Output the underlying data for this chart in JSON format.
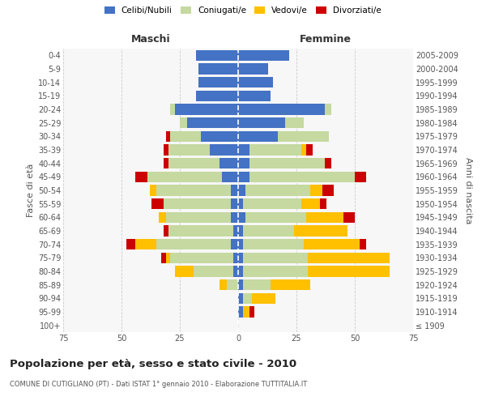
{
  "age_groups": [
    "100+",
    "95-99",
    "90-94",
    "85-89",
    "80-84",
    "75-79",
    "70-74",
    "65-69",
    "60-64",
    "55-59",
    "50-54",
    "45-49",
    "40-44",
    "35-39",
    "30-34",
    "25-29",
    "20-24",
    "15-19",
    "10-14",
    "5-9",
    "0-4"
  ],
  "birth_years": [
    "≤ 1909",
    "1910-1914",
    "1915-1919",
    "1920-1924",
    "1925-1929",
    "1930-1934",
    "1935-1939",
    "1940-1944",
    "1945-1949",
    "1950-1954",
    "1955-1959",
    "1960-1964",
    "1965-1969",
    "1970-1974",
    "1975-1979",
    "1980-1984",
    "1985-1989",
    "1990-1994",
    "1995-1999",
    "2000-2004",
    "2005-2009"
  ],
  "males": {
    "celibi": [
      0,
      0,
      0,
      0,
      2,
      2,
      3,
      2,
      3,
      3,
      3,
      7,
      8,
      12,
      16,
      22,
      27,
      18,
      17,
      17,
      18
    ],
    "coniugati": [
      0,
      0,
      0,
      5,
      17,
      27,
      32,
      28,
      28,
      29,
      32,
      32,
      22,
      18,
      13,
      3,
      2,
      0,
      0,
      0,
      0
    ],
    "vedovi": [
      0,
      0,
      0,
      3,
      8,
      2,
      9,
      0,
      3,
      0,
      3,
      0,
      0,
      0,
      0,
      0,
      0,
      0,
      0,
      0,
      0
    ],
    "divorziati": [
      0,
      0,
      0,
      0,
      0,
      2,
      4,
      2,
      0,
      5,
      0,
      5,
      2,
      2,
      2,
      0,
      0,
      0,
      0,
      0,
      0
    ]
  },
  "females": {
    "nubili": [
      0,
      2,
      2,
      2,
      2,
      2,
      2,
      2,
      3,
      2,
      3,
      5,
      5,
      5,
      17,
      20,
      37,
      14,
      15,
      13,
      22
    ],
    "coniugate": [
      0,
      0,
      4,
      12,
      28,
      28,
      26,
      22,
      26,
      25,
      28,
      45,
      32,
      22,
      22,
      8,
      3,
      0,
      0,
      0,
      0
    ],
    "vedove": [
      0,
      3,
      10,
      17,
      35,
      35,
      24,
      23,
      16,
      8,
      5,
      0,
      0,
      2,
      0,
      0,
      0,
      0,
      0,
      0,
      0
    ],
    "divorziate": [
      0,
      2,
      0,
      0,
      0,
      0,
      3,
      0,
      5,
      3,
      5,
      5,
      3,
      3,
      0,
      0,
      0,
      0,
      0,
      0,
      0
    ]
  },
  "colors": {
    "celibi": "#4472c4",
    "coniugati": "#c5d9a0",
    "vedovi": "#ffc000",
    "divorziati": "#cc0000"
  },
  "title": "Popolazione per età, sesso e stato civile - 2010",
  "subtitle": "COMUNE DI CUTIGLIANO (PT) - Dati ISTAT 1° gennaio 2010 - Elaborazione TUTTITALIA.IT",
  "xlabel_left": "Maschi",
  "xlabel_right": "Femmine",
  "ylabel_left": "Fasce di età",
  "ylabel_right": "Anni di nascita",
  "xlim": 75,
  "legend_labels": [
    "Celibi/Nubili",
    "Coniugati/e",
    "Vedovi/e",
    "Divorziati/e"
  ],
  "bg_color": "#ffffff",
  "plot_bg_color": "#f7f7f7",
  "grid_color": "#cccccc"
}
